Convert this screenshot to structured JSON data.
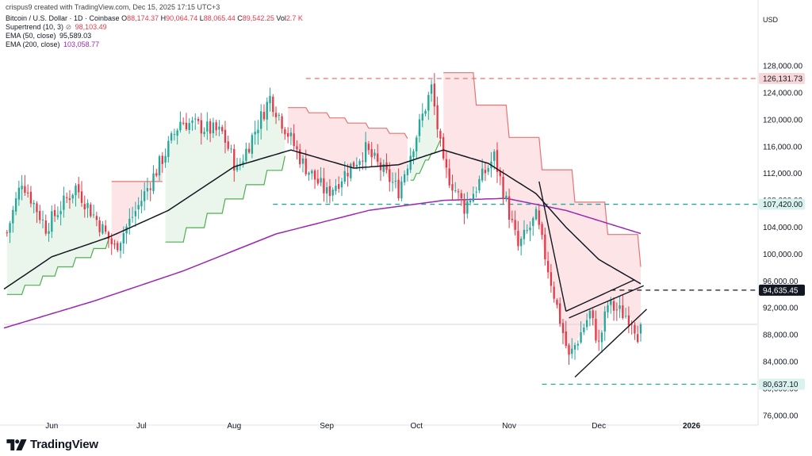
{
  "header": {
    "attribution": "crispus9 created with TradingView.com, Dec 15, 2025 17:15 UTC+3",
    "symbol": "Bitcoin / U.S. Dollar · 1D · Coinbase",
    "ohlc": {
      "o_label": "O",
      "o": "88,174.37",
      "h_label": "H",
      "h": "90,064.74",
      "l_label": "L",
      "l": "88,065.44",
      "c_label": "C",
      "c": "89,542.25",
      "vol_label": "Vol",
      "vol": "2.7 K"
    },
    "indicators": [
      {
        "label": "Supertrend (10, 3)",
        "icon": "clock-icon",
        "value": "98,103.49",
        "color": "#e23b4a"
      },
      {
        "label": "EMA (50, close)",
        "value": "95,589.03",
        "color": "#131722"
      },
      {
        "label": "EMA (200, close)",
        "value": "103,058.77",
        "color": "#9c27b0"
      }
    ]
  },
  "currency": "USD",
  "branding": {
    "name": "TradingView",
    "icon": "tradingview-logo-icon"
  },
  "colors": {
    "up": "#26a69a",
    "down": "#e23b4a",
    "ema50": "#131722",
    "ema200": "#9c27b0",
    "st_up_fill": "#e8f5e9",
    "st_up_line": "#4caf50",
    "st_down_fill": "#fde2e4",
    "st_down_line": "#e57373",
    "level_red": "#e57373",
    "level_teal": "#26a69a",
    "badge_red": "#f8d7da",
    "badge_teal": "#d9f2ee",
    "badge_dark": "#131722"
  },
  "chart_data": {
    "type": "candlestick",
    "symbol": "BTC/USD",
    "timeframe": "1D",
    "y_axis": {
      "ticks": [
        76000,
        80000,
        84000,
        88000,
        92000,
        96000,
        100000,
        104000,
        108000,
        112000,
        116000,
        120000,
        124000,
        128000
      ],
      "tick_labels": [
        "76,000.00",
        "80,000.00",
        "84,000.00",
        "88,000.00",
        "92,000.00",
        "96,000.00",
        "100,000.00",
        "104,000.00",
        "108,000.00",
        "112,000.00",
        "116,000.00",
        "120,000.00",
        "124,000.00",
        "128,000.00"
      ],
      "ylim": [
        75500,
        130500
      ]
    },
    "x_axis": {
      "months": [
        "Jun",
        "Jul",
        "Aug",
        "Sep",
        "Oct",
        "Nov",
        "Dec",
        "2026"
      ],
      "month_start_dates": [
        "2025-06-01",
        "2025-07-01",
        "2025-08-01",
        "2025-09-01",
        "2025-10-01",
        "2025-11-01",
        "2025-12-01",
        "2026-01-01"
      ],
      "xlim": [
        "2025-05-16",
        "2026-01-23"
      ]
    },
    "candles_start_date": "2025-05-17",
    "candles_end_date": "2025-12-15",
    "close_path": [
      {
        "date": "2025-05-17",
        "close": 103200
      },
      {
        "date": "2025-05-22",
        "close": 111000
      },
      {
        "date": "2025-05-30",
        "close": 104000
      },
      {
        "date": "2025-06-09",
        "close": 110000
      },
      {
        "date": "2025-06-22",
        "close": 100900
      },
      {
        "date": "2025-06-30",
        "close": 107200
      },
      {
        "date": "2025-07-10",
        "close": 116000
      },
      {
        "date": "2025-07-14",
        "close": 119800
      },
      {
        "date": "2025-07-28",
        "close": 118000
      },
      {
        "date": "2025-08-02",
        "close": 112500
      },
      {
        "date": "2025-08-13",
        "close": 123300
      },
      {
        "date": "2025-08-24",
        "close": 113500
      },
      {
        "date": "2025-09-01",
        "close": 109000
      },
      {
        "date": "2025-09-14",
        "close": 115500
      },
      {
        "date": "2025-09-25",
        "close": 109500
      },
      {
        "date": "2025-10-06",
        "close": 124700
      },
      {
        "date": "2025-10-10",
        "close": 113000
      },
      {
        "date": "2025-10-17",
        "close": 107000
      },
      {
        "date": "2025-10-27",
        "close": 114500
      },
      {
        "date": "2025-11-04",
        "close": 101000
      },
      {
        "date": "2025-11-10",
        "close": 105500
      },
      {
        "date": "2025-11-21",
        "close": 84500
      },
      {
        "date": "2025-11-28",
        "close": 91200
      },
      {
        "date": "2025-12-01",
        "close": 86500
      },
      {
        "date": "2025-12-04",
        "close": 92500
      },
      {
        "date": "2025-12-12",
        "close": 90400
      },
      {
        "date": "2025-12-14",
        "close": 88200
      },
      {
        "date": "2025-12-15",
        "close": 89542
      }
    ],
    "ema50": [
      {
        "date": "2025-05-16",
        "value": 94800
      },
      {
        "date": "2025-06-01",
        "value": 99600
      },
      {
        "date": "2025-06-20",
        "value": 102500
      },
      {
        "date": "2025-07-10",
        "value": 106500
      },
      {
        "date": "2025-08-01",
        "value": 113000
      },
      {
        "date": "2025-08-20",
        "value": 115500
      },
      {
        "date": "2025-09-10",
        "value": 112800
      },
      {
        "date": "2025-09-25",
        "value": 113300
      },
      {
        "date": "2025-10-10",
        "value": 115500
      },
      {
        "date": "2025-10-25",
        "value": 113500
      },
      {
        "date": "2025-11-10",
        "value": 109000
      },
      {
        "date": "2025-11-20",
        "value": 104000
      },
      {
        "date": "2025-12-01",
        "value": 99200
      },
      {
        "date": "2025-12-15",
        "value": 95589
      }
    ],
    "ema200": [
      {
        "date": "2025-05-16",
        "value": 89000
      },
      {
        "date": "2025-06-15",
        "value": 93000
      },
      {
        "date": "2025-07-15",
        "value": 97500
      },
      {
        "date": "2025-08-15",
        "value": 103000
      },
      {
        "date": "2025-09-15",
        "value": 106500
      },
      {
        "date": "2025-10-10",
        "value": 108000
      },
      {
        "date": "2025-10-31",
        "value": 108300
      },
      {
        "date": "2025-11-20",
        "value": 106500
      },
      {
        "date": "2025-12-15",
        "value": 103059
      }
    ],
    "supertrend": [
      {
        "start": "2025-05-17",
        "end": "2025-06-20",
        "trend": "up",
        "from": 94000,
        "to": 102200
      },
      {
        "start": "2025-06-21",
        "end": "2025-07-08",
        "trend": "down",
        "from": 110800,
        "to": 110800
      },
      {
        "start": "2025-07-09",
        "end": "2025-08-18",
        "trend": "up",
        "from": 101800,
        "to": 114600
      },
      {
        "start": "2025-08-19",
        "end": "2025-09-28",
        "trend": "down",
        "from": 121800,
        "to": 117200
      },
      {
        "start": "2025-09-29",
        "end": "2025-10-09",
        "trend": "up",
        "from": 111000,
        "to": 117000
      },
      {
        "start": "2025-10-10",
        "end": "2025-12-15",
        "trend": "down",
        "from": 127000,
        "to": 98103
      }
    ],
    "levels": [
      {
        "value": 126131.73,
        "label": "126,131.73",
        "style": "dashed",
        "color": "#e57373",
        "start": "2025-08-25"
      },
      {
        "value": 107420.0,
        "label": "107,420.00",
        "style": "dashed",
        "color": "#26a69a",
        "start": "2025-08-14"
      },
      {
        "value": 94635.45,
        "label": "94,635.45",
        "style": "dashed",
        "color": "#131722",
        "start": "2025-12-05"
      },
      {
        "value": 80637.1,
        "label": "80,637.10",
        "style": "dashed",
        "color": "#26a69a",
        "start": "2025-11-12"
      },
      {
        "value": 89542.25,
        "label": "",
        "style": "solid",
        "color": "#d1d4dc",
        "start": "2025-05-16"
      }
    ],
    "trendlines": [
      {
        "from": {
          "date": "2025-11-11",
          "value": 110800
        },
        "to": {
          "date": "2025-11-20",
          "value": 91500
        }
      },
      {
        "from": {
          "date": "2025-11-20",
          "value": 91500
        },
        "to": {
          "date": "2025-12-13",
          "value": 96200
        }
      },
      {
        "from": {
          "date": "2025-11-21",
          "value": 90500
        },
        "to": {
          "date": "2025-12-16",
          "value": 95300
        }
      },
      {
        "from": {
          "date": "2025-11-23",
          "value": 81700
        },
        "to": {
          "date": "2025-12-17",
          "value": 91800
        }
      }
    ]
  }
}
